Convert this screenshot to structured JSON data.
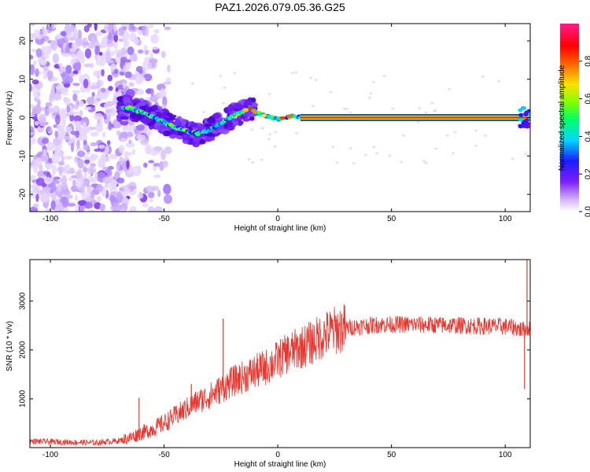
{
  "chart_data": [
    {
      "type": "heatmap",
      "title": "PAZ1.2026.079.05.36.G25",
      "xlabel": "Height of straight line (km)",
      "ylabel": "Frequency (Hz)",
      "xlim": [
        -109,
        111
      ],
      "ylim": [
        -24.5,
        24.5
      ],
      "xticks": [
        -100,
        -50,
        0,
        50,
        100
      ],
      "yticks": [
        -20,
        -10,
        0,
        10,
        20
      ],
      "colorbar": {
        "label": "Normalized spectral amplitude",
        "range": [
          0.0,
          1.0
        ],
        "ticks": [
          "0.0",
          "0.2",
          "0.4",
          "0.6",
          "0.8"
        ]
      },
      "ridge": {
        "x": [
          -65,
          -60,
          -55,
          -50,
          -45,
          -40,
          -35,
          -30,
          -25,
          -20,
          -15,
          -12,
          -10,
          -5,
          0,
          5,
          10,
          20,
          50,
          80,
          100,
          105,
          108,
          111
        ],
        "y": [
          2.5,
          1.5,
          0.3,
          -1.2,
          -2.5,
          -3.5,
          -4.2,
          -3.3,
          -1.5,
          0.2,
          1.8,
          2.6,
          1.5,
          0.3,
          -0.4,
          0.3,
          0.2,
          0,
          0,
          0,
          0,
          0,
          0.5,
          0
        ]
      }
    },
    {
      "type": "line",
      "xlabel": "Height of straight line (km)",
      "ylabel": "SNR (10 * v/v)",
      "xlim": [
        -109,
        111
      ],
      "ylim": [
        0,
        3850
      ],
      "xticks": [
        -100,
        -50,
        0,
        50,
        100
      ],
      "yticks": [
        1000,
        2000,
        3000
      ],
      "color": "#e8352e",
      "series": [
        {
          "name": "SNR",
          "x": [
            -109,
            -100,
            -90,
            -80,
            -70,
            -65,
            -60,
            -55,
            -50,
            -45,
            -40,
            -35,
            -30,
            -25,
            -20,
            -15,
            -10,
            -5,
            0,
            5,
            10,
            15,
            20,
            25,
            30,
            35,
            40,
            45,
            50,
            60,
            70,
            80,
            90,
            100,
            105,
            108,
            110,
            111
          ],
          "y": [
            130,
            120,
            110,
            100,
            140,
            200,
            300,
            380,
            500,
            650,
            800,
            950,
            1050,
            1200,
            1350,
            1450,
            1550,
            1650,
            1800,
            1950,
            2050,
            2150,
            2300,
            2400,
            2450,
            2480,
            2500,
            2520,
            2520,
            2520,
            2510,
            2500,
            2490,
            2480,
            2450,
            2400,
            2450,
            2450
          ]
        }
      ],
      "spikes": [
        {
          "x": -61,
          "y": 1020
        },
        {
          "x": -38,
          "y": 1300
        },
        {
          "x": -24,
          "y": 2640
        },
        {
          "x": 108.5,
          "y": 1200
        },
        {
          "x": 109.6,
          "y": 3850
        }
      ]
    }
  ]
}
